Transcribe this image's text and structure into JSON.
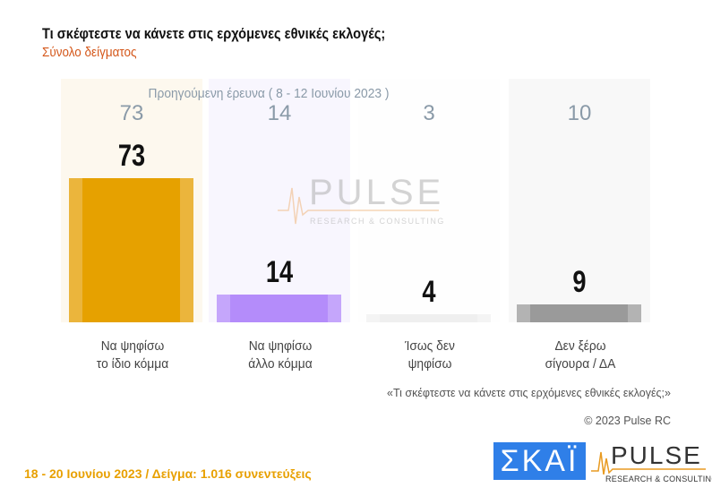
{
  "header": {
    "title": "Τι σκέφτεστε να κάνετε στις ερχόμενες εθνικές εκλογές;",
    "subtitle": "Σύνολο δείγματος"
  },
  "chart_data": {
    "type": "bar",
    "categories": [
      "Να ψηφίσω\nτο ίδιο κόμμα",
      "Να ψηφίσω\nάλλο κόμμα",
      "Ίσως δεν\nψηφίσω",
      "Δεν ξέρω\nσίγουρα / ΔΑ"
    ],
    "values": [
      73,
      14,
      4,
      9
    ],
    "previous_label": "Προηγούμενη έρευνα ( 8  -  12  Ιουνίου  2023 )",
    "previous_values": [
      73,
      14,
      3,
      10
    ],
    "colors": [
      "#e6a100",
      "#b48cfa",
      "#efefef",
      "#9a9a9a"
    ],
    "edge_colors": [
      "#ebb53c",
      "#c5a6fb",
      "#f4f4f4",
      "#b3b3b3"
    ],
    "background_colors": [
      "#fdf8ee",
      "#f8f6fe",
      "#fefefe",
      "#f8f8f8"
    ],
    "ylim": [
      0,
      100
    ]
  },
  "footer": {
    "footnote": "«Τι σκέφτεστε να κάνετε στις ερχόμενες εθνικές εκλογές;»",
    "copyright": "© 2023 Pulse RC",
    "sample": "18 - 20 Ιουνίου  2023  /  Δείγμα:  1.016 συνεντεύξεις",
    "skai_logo": "ΣΚΑΪ",
    "pulse_logo": "PULSE",
    "pulse_tagline": "RESEARCH & CONSULTING"
  }
}
